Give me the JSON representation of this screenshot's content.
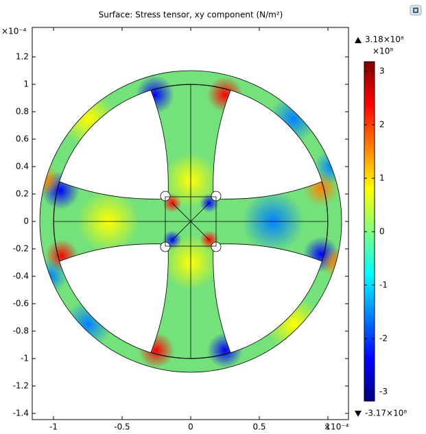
{
  "chart_data": {
    "type": "surface",
    "title": "Surface: Stress tensor, xy component (N/m²)",
    "x_multiplier": "×10⁻⁴",
    "y_multiplier": "×10⁻⁴",
    "xlim": [
      -1.155,
      1.15
    ],
    "ylim": [
      -1.445,
      1.415
    ],
    "xticks": [
      -1,
      -0.5,
      0,
      0.5,
      1
    ],
    "yticks": [
      1.2,
      1,
      0.8,
      0.6,
      0.4,
      0.2,
      0,
      -0.2,
      -0.4,
      -0.6,
      -0.8,
      -1,
      -1.2,
      -1.4
    ],
    "colorbar": {
      "multiplier": "×10⁸",
      "clim": [
        -3.17,
        3.18
      ],
      "ticks": [
        3,
        2,
        1,
        0,
        -1,
        -2,
        -3
      ],
      "max": {
        "value": 3.18,
        "label": "3.18×10⁸"
      },
      "min": {
        "value": -3.17,
        "label": "-3.17×10⁸"
      },
      "colormap": [
        "#00007f",
        "#0000ff",
        "#0080ff",
        "#00ffff",
        "#80ff80",
        "#ffff00",
        "#ff8000",
        "#ff0000",
        "#7f0000"
      ]
    }
  }
}
